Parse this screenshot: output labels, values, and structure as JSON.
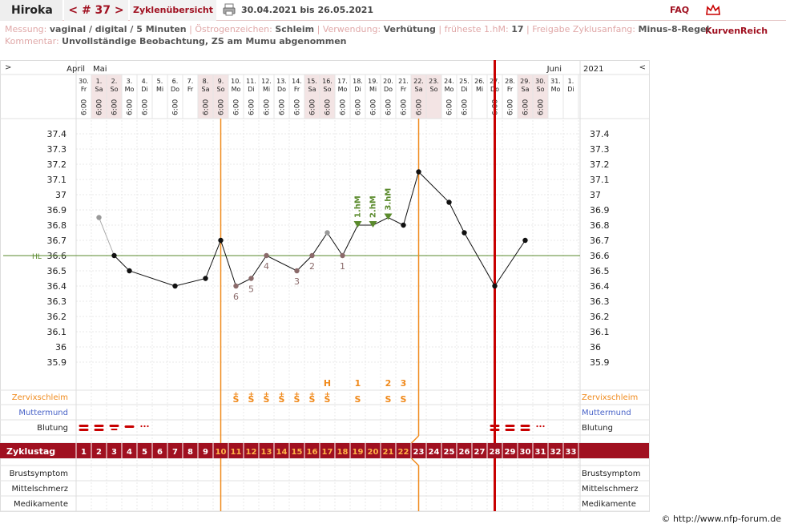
{
  "header": {
    "user": "Hiroka",
    "cycle": "< # 37 >",
    "overview": "Zyklenübersicht",
    "date_range": "30.04.2021 bis 26.05.2021",
    "faq": "FAQ",
    "brand": "KurvenReich",
    "print_icon": "printer-icon"
  },
  "info": {
    "messung_label": "Messung:",
    "messung_value": "vaginal / digital / 5 Minuten",
    "oestro_label": "Östrogenzeichen:",
    "oestro_value": "Schleim",
    "verwendung_label": "Verwendung:",
    "verwendung_value": "Verhütung",
    "hm_label": "früheste 1.hM:",
    "hm_value": "17",
    "freigabe_label": "Freigabe Zyklusanfang:",
    "freigabe_value": "Minus-8-Regel",
    "kommentar_label": "Kommentar:",
    "kommentar_value": "Unvollständige Beobachtung, ZS am Mumu abgenommen"
  },
  "chart_data": {
    "type": "line",
    "months": [
      "April",
      "Mai",
      "Juni"
    ],
    "year": "2021",
    "nav_left": ">",
    "nav_right": "<",
    "days": [
      {
        "n": "30.",
        "w": "Fr",
        "t": "6:00",
        "we": false
      },
      {
        "n": "1.",
        "w": "Sa",
        "t": "6:00",
        "we": true
      },
      {
        "n": "2.",
        "w": "So",
        "t": "6:00",
        "we": true
      },
      {
        "n": "3.",
        "w": "Mo",
        "t": "6:00",
        "we": false
      },
      {
        "n": "4.",
        "w": "Di",
        "t": "6:00",
        "we": false
      },
      {
        "n": "5.",
        "w": "Mi",
        "t": "",
        "we": false
      },
      {
        "n": "6.",
        "w": "Do",
        "t": "6:00",
        "we": false
      },
      {
        "n": "7.",
        "w": "Fr",
        "t": "",
        "we": false
      },
      {
        "n": "8.",
        "w": "Sa",
        "t": "6:00",
        "we": true
      },
      {
        "n": "9.",
        "w": "So",
        "t": "6:00",
        "we": true
      },
      {
        "n": "10.",
        "w": "Mo",
        "t": "6:00",
        "we": false
      },
      {
        "n": "11.",
        "w": "Di",
        "t": "6:00",
        "we": false
      },
      {
        "n": "12.",
        "w": "Mi",
        "t": "6:00",
        "we": false
      },
      {
        "n": "13.",
        "w": "Do",
        "t": "6:00",
        "we": false
      },
      {
        "n": "14.",
        "w": "Fr",
        "t": "6:00",
        "we": false
      },
      {
        "n": "15.",
        "w": "Sa",
        "t": "6:00",
        "we": true
      },
      {
        "n": "16.",
        "w": "So",
        "t": "6:00",
        "we": true
      },
      {
        "n": "17.",
        "w": "Mo",
        "t": "6:00",
        "we": false
      },
      {
        "n": "18.",
        "w": "Di",
        "t": "6:00",
        "we": false
      },
      {
        "n": "19.",
        "w": "Mi",
        "t": "6:00",
        "we": false
      },
      {
        "n": "20.",
        "w": "Do",
        "t": "6:00",
        "we": false
      },
      {
        "n": "21.",
        "w": "Fr",
        "t": "6:00",
        "we": false
      },
      {
        "n": "22.",
        "w": "Sa",
        "t": "6:00",
        "we": true
      },
      {
        "n": "23.",
        "w": "So",
        "t": "",
        "we": true
      },
      {
        "n": "24.",
        "w": "Mo",
        "t": "6:00",
        "we": false
      },
      {
        "n": "25.",
        "w": "Di",
        "t": "6:00",
        "we": false
      },
      {
        "n": "26.",
        "w": "Mi",
        "t": "",
        "we": false
      },
      {
        "n": "27.",
        "w": "Do",
        "t": "6:00",
        "we": false
      },
      {
        "n": "28.",
        "w": "Fr",
        "t": "6:00",
        "we": false
      },
      {
        "n": "29.",
        "w": "Sa",
        "t": "6:00",
        "we": true
      },
      {
        "n": "30.",
        "w": "So",
        "t": "6:00",
        "we": true
      },
      {
        "n": "31.",
        "w": "Mo",
        "t": "",
        "we": false
      },
      {
        "n": "1.",
        "w": "Di",
        "t": "",
        "we": false
      }
    ],
    "y_ticks": [
      "37.4",
      "37.3",
      "37.2",
      "37.1",
      "37",
      "36.9",
      "36.8",
      "36.7",
      "36.6",
      "36.5",
      "36.4",
      "36.3",
      "36.2",
      "36.1",
      "36",
      "35.9"
    ],
    "ylim": [
      35.9,
      37.4
    ],
    "hl_label": "HL",
    "hl_value": 36.6,
    "temps": [
      {
        "d": 2,
        "v": 36.85,
        "ex": true
      },
      {
        "d": 3,
        "v": 36.6
      },
      {
        "d": 4,
        "v": 36.5
      },
      {
        "d": 7,
        "v": 36.4
      },
      {
        "d": 9,
        "v": 36.45
      },
      {
        "d": 10,
        "v": 36.7
      },
      {
        "d": 11,
        "v": 36.4,
        "lbl": "6"
      },
      {
        "d": 12,
        "v": 36.45,
        "lbl": "5"
      },
      {
        "d": 13,
        "v": 36.6,
        "lbl": "4"
      },
      {
        "d": 15,
        "v": 36.5,
        "lbl": "3"
      },
      {
        "d": 16,
        "v": 36.6,
        "lbl": "2"
      },
      {
        "d": 17,
        "v": 36.75,
        "ex": true
      },
      {
        "d": 18,
        "v": 36.6,
        "lbl": "1"
      },
      {
        "d": 19,
        "v": 36.8,
        "hm": "1.hM"
      },
      {
        "d": 20,
        "v": 36.8,
        "hm": "2.hM"
      },
      {
        "d": 21,
        "v": 36.85,
        "hm": "3.hM"
      },
      {
        "d": 22,
        "v": 36.8
      },
      {
        "d": 23,
        "v": 37.15
      },
      {
        "d": 25,
        "v": 36.95
      },
      {
        "d": 26,
        "v": 36.75
      },
      {
        "d": 28,
        "v": 36.4
      },
      {
        "d": 30,
        "v": 36.7
      }
    ],
    "peak_marks": [
      {
        "d": 17,
        "t": "H"
      },
      {
        "d": 19,
        "t": "1"
      },
      {
        "d": 21,
        "t": "2"
      },
      {
        "d": 22,
        "t": "3"
      }
    ],
    "zervix": [
      {
        "d": 11,
        "t": "+",
        "s": "S"
      },
      {
        "d": 12,
        "t": "+",
        "s": "S"
      },
      {
        "d": 13,
        "t": "+",
        "s": "S"
      },
      {
        "d": 14,
        "t": "+",
        "s": "S"
      },
      {
        "d": 15,
        "t": "+",
        "s": "S"
      },
      {
        "d": 16,
        "t": "+",
        "s": "S"
      },
      {
        "d": 17,
        "t": "+",
        "s": "S"
      },
      {
        "d": 19,
        "t": "",
        "s": "S"
      },
      {
        "d": 21,
        "t": "",
        "s": "S"
      },
      {
        "d": 22,
        "t": "",
        "s": "S"
      }
    ],
    "bleeding": [
      {
        "d": 1,
        "k": "heavy"
      },
      {
        "d": 2,
        "k": "heavy"
      },
      {
        "d": 3,
        "k": "medium"
      },
      {
        "d": 4,
        "k": "light"
      },
      {
        "d": 5,
        "k": "spot"
      },
      {
        "d": 28,
        "k": "heavy"
      },
      {
        "d": 29,
        "k": "heavy"
      },
      {
        "d": 30,
        "k": "heavy"
      },
      {
        "d": 31,
        "k": "spot"
      }
    ],
    "cycle_days": [
      "1",
      "2",
      "3",
      "4",
      "5",
      "6",
      "7",
      "8",
      "9",
      "10",
      "11",
      "12",
      "13",
      "14",
      "15",
      "16",
      "17",
      "18",
      "19",
      "20",
      "21",
      "22",
      "23",
      "24",
      "25",
      "26",
      "27",
      "28",
      "29",
      "30",
      "31",
      "32",
      "33"
    ],
    "rows": {
      "zervix": "Zervixschleim",
      "muttermund": "Muttermund",
      "blutung": "Blutung",
      "zyklustag": "Zyklustag",
      "brust": "Brustsymptom",
      "mittel": "Mittelschmerz",
      "medi": "Medikamente"
    },
    "vlines": [
      {
        "d": 9.5,
        "color": "#f08a1c"
      },
      {
        "d": 22.5,
        "color": "#f08a1c"
      },
      {
        "d": 27.5,
        "color": "#c80000"
      }
    ],
    "colors": {
      "dark": "#a01020",
      "orange": "#f08a1c",
      "green": "#5a8a2c",
      "blue": "#4a64c8",
      "red": "#c80000",
      "point": "#111111",
      "preg": "#8a6a6a"
    }
  },
  "footer": "© http://www.nfp-forum.de"
}
